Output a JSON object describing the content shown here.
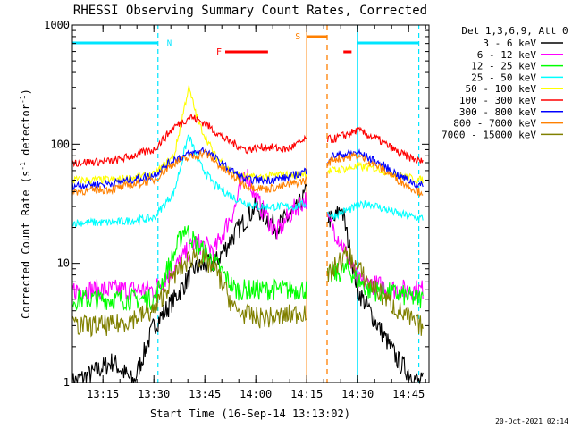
{
  "chart_data": {
    "type": "line",
    "title": "RHESSI Observing Summary Count Rates, Corrected",
    "xlabel": "Start Time (16-Sep-14 13:13:02)",
    "ylabel_main": "Corrected Count Rate (s",
    "ylabel_sup1": "-1",
    "ylabel_mid": " detector",
    "ylabel_sup2": "-1",
    "ylabel_end": ")",
    "y_scale": "log",
    "ylim": [
      1,
      1000
    ],
    "xlim_minutes": [
      13.1,
      14.85
    ],
    "y_ticks": [
      {
        "v": 1,
        "label": "1"
      },
      {
        "v": 10,
        "label": "10"
      },
      {
        "v": 100,
        "label": "100"
      },
      {
        "v": 1000,
        "label": "1000"
      }
    ],
    "x_ticks": [
      {
        "t": 13.25,
        "label": "13:15"
      },
      {
        "t": 13.5,
        "label": "13:30"
      },
      {
        "t": 13.75,
        "label": "13:45"
      },
      {
        "t": 14.0,
        "label": "14:00"
      },
      {
        "t": 14.25,
        "label": "14:15"
      },
      {
        "t": 14.5,
        "label": "14:30"
      },
      {
        "t": 14.75,
        "label": "14:45"
      }
    ],
    "legend_title": "Det 1,3,6,9, Att 0",
    "legend_position": "right",
    "series": [
      {
        "name": "3 - 6 keV",
        "color": "#000000",
        "points": [
          [
            13.1,
            1
          ],
          [
            13.2,
            1.2
          ],
          [
            13.3,
            1.5
          ],
          [
            13.4,
            1
          ],
          [
            13.5,
            3
          ],
          [
            13.6,
            5
          ],
          [
            13.7,
            9
          ],
          [
            13.8,
            10
          ],
          [
            13.9,
            18
          ],
          [
            14.0,
            30
          ],
          [
            14.1,
            20
          ],
          [
            14.2,
            28
          ],
          [
            14.25,
            40
          ],
          [
            14.38,
            22
          ],
          [
            14.42,
            30
          ],
          [
            14.5,
            6
          ],
          [
            14.6,
            3
          ],
          [
            14.7,
            1.5
          ],
          [
            14.8,
            1
          ]
        ]
      },
      {
        "name": "6 - 12 keV",
        "color": "#ff00ff",
        "points": [
          [
            13.1,
            6
          ],
          [
            13.3,
            6
          ],
          [
            13.5,
            6
          ],
          [
            13.6,
            9
          ],
          [
            13.7,
            15
          ],
          [
            13.8,
            13
          ],
          [
            13.9,
            30
          ],
          [
            13.95,
            60
          ],
          [
            14.0,
            35
          ],
          [
            14.1,
            18
          ],
          [
            14.2,
            30
          ],
          [
            14.25,
            35
          ],
          [
            14.38,
            20
          ],
          [
            14.42,
            15
          ],
          [
            14.5,
            7
          ],
          [
            14.6,
            6.5
          ],
          [
            14.7,
            6
          ],
          [
            14.8,
            6
          ]
        ]
      },
      {
        "name": "12 - 25 keV",
        "color": "#00ff00",
        "points": [
          [
            13.1,
            5
          ],
          [
            13.3,
            5
          ],
          [
            13.5,
            5
          ],
          [
            13.6,
            12
          ],
          [
            13.65,
            20
          ],
          [
            13.7,
            15
          ],
          [
            13.8,
            10
          ],
          [
            13.9,
            6
          ],
          [
            14.0,
            6
          ],
          [
            14.1,
            6
          ],
          [
            14.2,
            6
          ],
          [
            14.25,
            6
          ],
          [
            14.38,
            8
          ],
          [
            14.45,
            9
          ],
          [
            14.55,
            6
          ],
          [
            14.7,
            5.5
          ],
          [
            14.8,
            5
          ]
        ]
      },
      {
        "name": "25 - 50 keV",
        "color": "#00ffff",
        "points": [
          [
            13.1,
            22
          ],
          [
            13.3,
            22
          ],
          [
            13.5,
            24
          ],
          [
            13.6,
            40
          ],
          [
            13.67,
            120
          ],
          [
            13.72,
            70
          ],
          [
            13.8,
            45
          ],
          [
            13.9,
            35
          ],
          [
            14.0,
            30
          ],
          [
            14.1,
            30
          ],
          [
            14.2,
            30
          ],
          [
            14.25,
            32
          ],
          [
            14.38,
            25
          ],
          [
            14.45,
            28
          ],
          [
            14.55,
            32
          ],
          [
            14.7,
            26
          ],
          [
            14.8,
            24
          ]
        ]
      },
      {
        "name": "50 - 100 keV",
        "color": "#ffff00",
        "points": [
          [
            13.1,
            50
          ],
          [
            13.3,
            50
          ],
          [
            13.5,
            55
          ],
          [
            13.6,
            80
          ],
          [
            13.67,
            300
          ],
          [
            13.72,
            150
          ],
          [
            13.8,
            80
          ],
          [
            13.9,
            55
          ],
          [
            14.0,
            52
          ],
          [
            14.1,
            55
          ],
          [
            14.2,
            55
          ],
          [
            14.25,
            58
          ],
          [
            14.38,
            60
          ],
          [
            14.5,
            65
          ],
          [
            14.6,
            62
          ],
          [
            14.7,
            55
          ],
          [
            14.8,
            50
          ]
        ]
      },
      {
        "name": "100 - 300 keV",
        "color": "#ff0000",
        "points": [
          [
            13.1,
            70
          ],
          [
            13.3,
            72
          ],
          [
            13.5,
            90
          ],
          [
            13.6,
            140
          ],
          [
            13.68,
            170
          ],
          [
            13.75,
            150
          ],
          [
            13.85,
            110
          ],
          [
            13.95,
            90
          ],
          [
            14.05,
            95
          ],
          [
            14.15,
            90
          ],
          [
            14.25,
            110
          ],
          [
            14.38,
            110
          ],
          [
            14.5,
            130
          ],
          [
            14.6,
            110
          ],
          [
            14.7,
            85
          ],
          [
            14.8,
            72
          ]
        ]
      },
      {
        "name": "300 - 800 keV",
        "color": "#0000ff",
        "points": [
          [
            13.1,
            45
          ],
          [
            13.3,
            47
          ],
          [
            13.5,
            55
          ],
          [
            13.6,
            75
          ],
          [
            13.75,
            90
          ],
          [
            13.85,
            65
          ],
          [
            13.95,
            50
          ],
          [
            14.05,
            50
          ],
          [
            14.15,
            52
          ],
          [
            14.25,
            60
          ],
          [
            14.38,
            80
          ],
          [
            14.5,
            85
          ],
          [
            14.6,
            70
          ],
          [
            14.7,
            55
          ],
          [
            14.8,
            45
          ]
        ]
      },
      {
        "name": "800 - 7000 keV",
        "color": "#ff8000",
        "points": [
          [
            13.1,
            40
          ],
          [
            13.3,
            42
          ],
          [
            13.5,
            50
          ],
          [
            13.6,
            70
          ],
          [
            13.75,
            85
          ],
          [
            13.85,
            60
          ],
          [
            13.95,
            45
          ],
          [
            14.05,
            42
          ],
          [
            14.15,
            45
          ],
          [
            14.25,
            50
          ],
          [
            14.38,
            75
          ],
          [
            14.5,
            80
          ],
          [
            14.6,
            65
          ],
          [
            14.7,
            50
          ],
          [
            14.8,
            40
          ]
        ]
      },
      {
        "name": "7000 - 15000 keV",
        "color": "#808000",
        "points": [
          [
            13.1,
            3
          ],
          [
            13.3,
            3
          ],
          [
            13.5,
            4
          ],
          [
            13.6,
            8
          ],
          [
            13.7,
            12
          ],
          [
            13.8,
            9
          ],
          [
            13.9,
            4
          ],
          [
            14.0,
            3.5
          ],
          [
            14.1,
            3.5
          ],
          [
            14.2,
            3.8
          ],
          [
            14.25,
            4
          ],
          [
            14.38,
            9
          ],
          [
            14.45,
            12
          ],
          [
            14.55,
            7
          ],
          [
            14.7,
            4
          ],
          [
            14.8,
            3
          ]
        ]
      }
    ],
    "annotations": {
      "night_label": "N",
      "flare_label": "F",
      "saa_label": "S",
      "night_color": "#00e5ff",
      "flare_color": "#ff0000",
      "saa_color": "#ff8000",
      "night_bars": [
        [
          13.1,
          13.52
        ],
        [
          14.5,
          14.8
        ]
      ],
      "flare_bars": [
        [
          13.85,
          14.06
        ],
        [
          14.43,
          14.47
        ]
      ],
      "saa_bar": [
        14.25,
        14.35
      ],
      "night_boundaries": [
        13.52,
        14.5,
        14.8
      ],
      "saa_solid": 14.25,
      "saa_dashed": 14.35
    },
    "timestamp": "20-Oct-2021 02:14"
  }
}
